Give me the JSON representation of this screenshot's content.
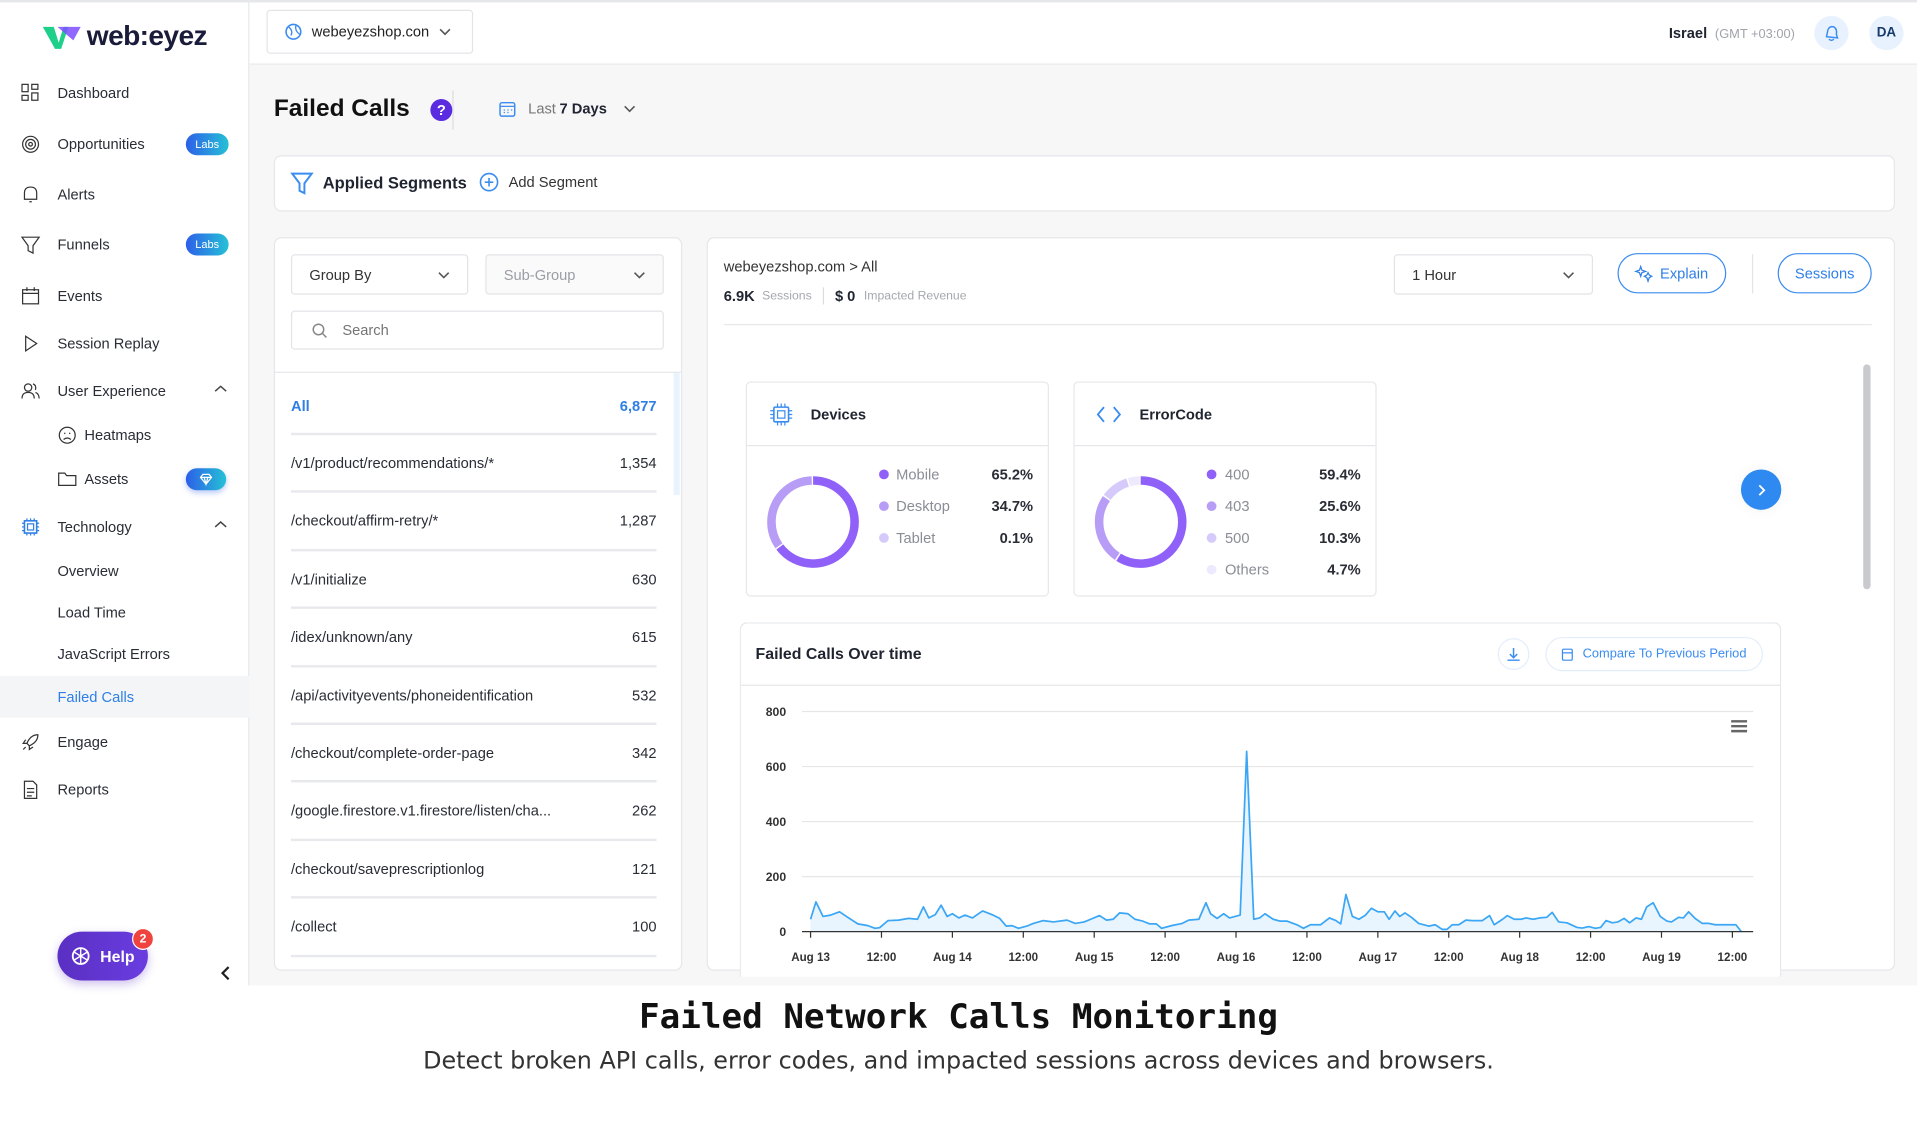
{
  "brand": {
    "name": "web:eyez"
  },
  "sidebar": {
    "items": [
      {
        "label": "Dashboard"
      },
      {
        "label": "Opportunities",
        "badge": "Labs"
      },
      {
        "label": "Alerts"
      },
      {
        "label": "Funnels",
        "badge": "Labs"
      },
      {
        "label": "Events"
      },
      {
        "label": "Session Replay"
      },
      {
        "label": "User Experience"
      },
      {
        "label": "Heatmaps"
      },
      {
        "label": "Assets"
      },
      {
        "label": "Technology"
      },
      {
        "label": "Overview"
      },
      {
        "label": "Load Time"
      },
      {
        "label": "JavaScript Errors"
      },
      {
        "label": "Failed Calls"
      },
      {
        "label": "Engage"
      },
      {
        "label": "Reports"
      }
    ],
    "help_label": "Help",
    "help_count": "2"
  },
  "header": {
    "site": "webeyezshop.con",
    "region": "Israel",
    "timezone": "(GMT +03:00)",
    "avatar": "DA"
  },
  "page": {
    "title": "Failed Calls",
    "help_glyph": "?",
    "range_prefix": "Last",
    "range_value": "7 Days"
  },
  "segments": {
    "title": "Applied Segments",
    "add_label": "Add Segment"
  },
  "left_panel": {
    "group_by": "Group By",
    "sub_group": "Sub-Group",
    "search_placeholder": "Search",
    "rows": [
      {
        "name": "All",
        "count": "6,877"
      },
      {
        "name": "/v1/product/recommendations/*",
        "count": "1,354"
      },
      {
        "name": "/checkout/affirm-retry/*",
        "count": "1,287"
      },
      {
        "name": "/v1/initialize",
        "count": "630"
      },
      {
        "name": "/idex/unknown/any",
        "count": "615"
      },
      {
        "name": "/api/activityevents/phoneidentification",
        "count": "532"
      },
      {
        "name": "/checkout/complete-order-page",
        "count": "342"
      },
      {
        "name": "/google.firestore.v1.firestore/listen/cha...",
        "count": "262"
      },
      {
        "name": "/checkout/saveprescriptionlog",
        "count": "121"
      },
      {
        "name": "/collect",
        "count": "100"
      }
    ]
  },
  "detail": {
    "breadcrumb": "webeyezshop.com > All",
    "sessions_value": "6.9K",
    "sessions_label": "Sessions",
    "revenue_value": "$ 0",
    "revenue_label": "Impacted Revenue",
    "interval": "1 Hour",
    "explain_label": "Explain",
    "sessions_button": "Sessions"
  },
  "breakdowns": [
    {
      "title": "Devices",
      "items": [
        {
          "name": "Mobile",
          "pct": "65.2%",
          "value": 65.2,
          "color": "#9061f9"
        },
        {
          "name": "Desktop",
          "pct": "34.7%",
          "value": 34.7,
          "color": "#b89df6"
        },
        {
          "name": "Tablet",
          "pct": "0.1%",
          "value": 0.1,
          "color": "#d6cafb"
        }
      ]
    },
    {
      "title": "ErrorCode",
      "items": [
        {
          "name": "400",
          "pct": "59.4%",
          "value": 59.4,
          "color": "#9061f9"
        },
        {
          "name": "403",
          "pct": "25.6%",
          "value": 25.6,
          "color": "#b89df6"
        },
        {
          "name": "500",
          "pct": "10.3%",
          "value": 10.3,
          "color": "#d6cafb"
        },
        {
          "name": "Others",
          "pct": "4.7%",
          "value": 4.7,
          "color": "#eeeafd"
        }
      ]
    }
  ],
  "chart_card": {
    "title": "Failed Calls Over time",
    "compare_label": "Compare To Previous Period"
  },
  "chart_data": {
    "type": "area",
    "title": "Failed Calls Over time",
    "xlabel": "",
    "ylabel": "",
    "ylim": [
      0,
      800
    ],
    "yticks": [
      "0",
      "200",
      "400",
      "600",
      "800"
    ],
    "xticks": [
      "Aug 13",
      "12:00",
      "Aug 14",
      "12:00",
      "Aug 15",
      "12:00",
      "Aug 16",
      "12:00",
      "Aug 17",
      "12:00",
      "Aug 18",
      "12:00",
      "Aug 19",
      "12:00"
    ],
    "x_unit": "hours since Aug 13 00:00",
    "color": "#3aa6f5",
    "grid": true,
    "points": [
      [
        0,
        45
      ],
      [
        0.9,
        108
      ],
      [
        2.1,
        55
      ],
      [
        3.4,
        60
      ],
      [
        4.9,
        72
      ],
      [
        6.3,
        52
      ],
      [
        8,
        28
      ],
      [
        9.7,
        22
      ],
      [
        10.9,
        12
      ],
      [
        11.7,
        14
      ],
      [
        13.1,
        40
      ],
      [
        14.9,
        42
      ],
      [
        16.6,
        48
      ],
      [
        18.1,
        45
      ],
      [
        19.1,
        90
      ],
      [
        20,
        50
      ],
      [
        21.1,
        62
      ],
      [
        22.1,
        96
      ],
      [
        23.1,
        55
      ],
      [
        24,
        65
      ],
      [
        25.1,
        50
      ],
      [
        26.1,
        60
      ],
      [
        27.4,
        50
      ],
      [
        29.1,
        75
      ],
      [
        30.9,
        60
      ],
      [
        32,
        48
      ],
      [
        33.1,
        20
      ],
      [
        34.1,
        22
      ],
      [
        35.2,
        12
      ],
      [
        36.6,
        20
      ],
      [
        37.7,
        30
      ],
      [
        39.4,
        40
      ],
      [
        41.1,
        35
      ],
      [
        43.4,
        42
      ],
      [
        44.8,
        30
      ],
      [
        46.3,
        35
      ],
      [
        47.4,
        45
      ],
      [
        48.9,
        58
      ],
      [
        50.1,
        42
      ],
      [
        51.2,
        45
      ],
      [
        52.3,
        68
      ],
      [
        53.7,
        65
      ],
      [
        54.9,
        45
      ],
      [
        56.2,
        38
      ],
      [
        57.4,
        28
      ],
      [
        58.5,
        28
      ],
      [
        59.4,
        12
      ],
      [
        61.1,
        22
      ],
      [
        62.9,
        30
      ],
      [
        64,
        42
      ],
      [
        65.7,
        45
      ],
      [
        66.9,
        105
      ],
      [
        67.7,
        65
      ],
      [
        68.8,
        48
      ],
      [
        69.9,
        65
      ],
      [
        70.9,
        50
      ],
      [
        72.7,
        60
      ],
      [
        73.8,
        655
      ],
      [
        75,
        45
      ],
      [
        76,
        50
      ],
      [
        76.9,
        65
      ],
      [
        78.3,
        45
      ],
      [
        79.4,
        38
      ],
      [
        80.6,
        38
      ],
      [
        82.3,
        25
      ],
      [
        83.4,
        12
      ],
      [
        84.6,
        25
      ],
      [
        86.3,
        25
      ],
      [
        87.8,
        50
      ],
      [
        88.9,
        40
      ],
      [
        89.7,
        28
      ],
      [
        90.6,
        135
      ],
      [
        91.7,
        55
      ],
      [
        92.8,
        45
      ],
      [
        93.9,
        60
      ],
      [
        94.9,
        85
      ],
      [
        96,
        72
      ],
      [
        97.1,
        72
      ],
      [
        97.9,
        45
      ],
      [
        98.9,
        75
      ],
      [
        99.7,
        55
      ],
      [
        100.6,
        68
      ],
      [
        101.7,
        52
      ],
      [
        102.9,
        30
      ],
      [
        104.6,
        20
      ],
      [
        105.7,
        25
      ],
      [
        106.9,
        8
      ],
      [
        107.7,
        8
      ],
      [
        108.6,
        25
      ],
      [
        109.7,
        25
      ],
      [
        110.9,
        42
      ],
      [
        112,
        40
      ],
      [
        113.7,
        40
      ],
      [
        114.9,
        58
      ],
      [
        115.7,
        25
      ],
      [
        117.1,
        45
      ],
      [
        117.9,
        58
      ],
      [
        119.1,
        45
      ],
      [
        120.2,
        45
      ],
      [
        121.1,
        50
      ],
      [
        122.3,
        45
      ],
      [
        123.4,
        50
      ],
      [
        124.6,
        52
      ],
      [
        125.5,
        70
      ],
      [
        126.6,
        35
      ],
      [
        128,
        32
      ],
      [
        129.7,
        15
      ],
      [
        130.6,
        13
      ],
      [
        131.7,
        18
      ],
      [
        132.8,
        12
      ],
      [
        133.7,
        15
      ],
      [
        134.6,
        40
      ],
      [
        135.7,
        32
      ],
      [
        136.6,
        35
      ],
      [
        137.7,
        48
      ],
      [
        138.6,
        32
      ],
      [
        139.7,
        50
      ],
      [
        140.6,
        45
      ],
      [
        141.5,
        90
      ],
      [
        142.6,
        105
      ],
      [
        143.8,
        55
      ],
      [
        144.9,
        38
      ],
      [
        145.7,
        35
      ],
      [
        146.9,
        52
      ],
      [
        147.7,
        50
      ],
      [
        148.6,
        72
      ],
      [
        149.7,
        48
      ],
      [
        150.9,
        30
      ],
      [
        152,
        30
      ],
      [
        153.1,
        25
      ],
      [
        154.9,
        25
      ],
      [
        156.6,
        25
      ],
      [
        157.5,
        0
      ]
    ]
  },
  "caption": {
    "title": "Failed Network Calls Monitoring",
    "subtitle": "Detect broken API calls, error codes, and impacted sessions across devices and browsers."
  }
}
